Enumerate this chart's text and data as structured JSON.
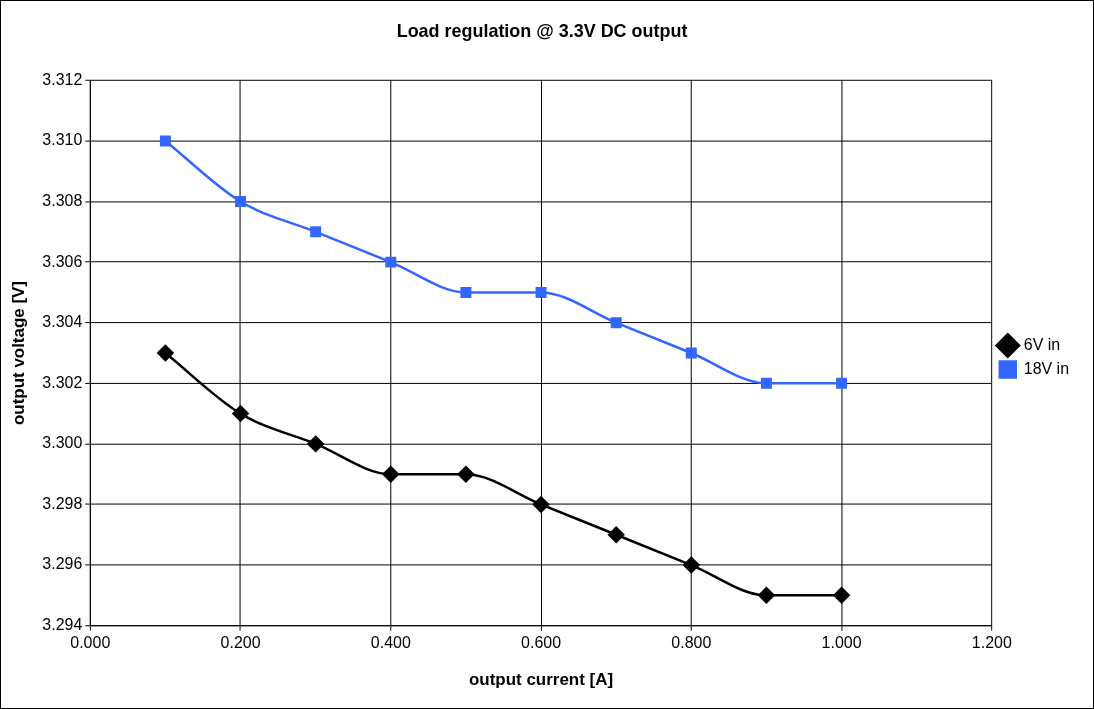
{
  "chart_data": {
    "type": "line",
    "title": "Load regulation @ 3.3V DC output",
    "xlabel": "output current [A]",
    "ylabel": "output voltage [V]",
    "x": [
      0.1,
      0.2,
      0.3,
      0.4,
      0.5,
      0.6,
      0.7,
      0.8,
      0.9,
      1.0
    ],
    "series": [
      {
        "name": "6V in",
        "color": "#000000",
        "marker": "diamond",
        "values": [
          3.303,
          3.301,
          3.3,
          3.299,
          3.299,
          3.298,
          3.297,
          3.296,
          3.295,
          3.295
        ]
      },
      {
        "name": "18V in",
        "color": "#3366ff",
        "marker": "square",
        "values": [
          3.31,
          3.308,
          3.307,
          3.306,
          3.305,
          3.305,
          3.304,
          3.303,
          3.302,
          3.302
        ]
      }
    ],
    "xlim": [
      0,
      1.2
    ],
    "xticks": [
      {
        "value": 0,
        "label": "0.000"
      },
      {
        "value": 0.2,
        "label": "0.200"
      },
      {
        "value": 0.4,
        "label": "0.400"
      },
      {
        "value": 0.6,
        "label": "0.600"
      },
      {
        "value": 0.8,
        "label": "0.800"
      },
      {
        "value": 1.0,
        "label": "1.000"
      },
      {
        "value": 1.2,
        "label": "1.200"
      }
    ],
    "ylim": [
      3.294,
      3.312
    ],
    "yticks": [
      {
        "value": 3.294,
        "label": "3.294"
      },
      {
        "value": 3.296,
        "label": "3.296"
      },
      {
        "value": 3.298,
        "label": "3.298"
      },
      {
        "value": 3.3,
        "label": "3.300"
      },
      {
        "value": 3.302,
        "label": "3.302"
      },
      {
        "value": 3.304,
        "label": "3.304"
      },
      {
        "value": 3.306,
        "label": "3.306"
      },
      {
        "value": 3.308,
        "label": "3.308"
      },
      {
        "value": 3.31,
        "label": "3.310"
      },
      {
        "value": 3.312,
        "label": "3.312"
      }
    ],
    "grid": true,
    "legend": "right",
    "line_style": "solid"
  }
}
